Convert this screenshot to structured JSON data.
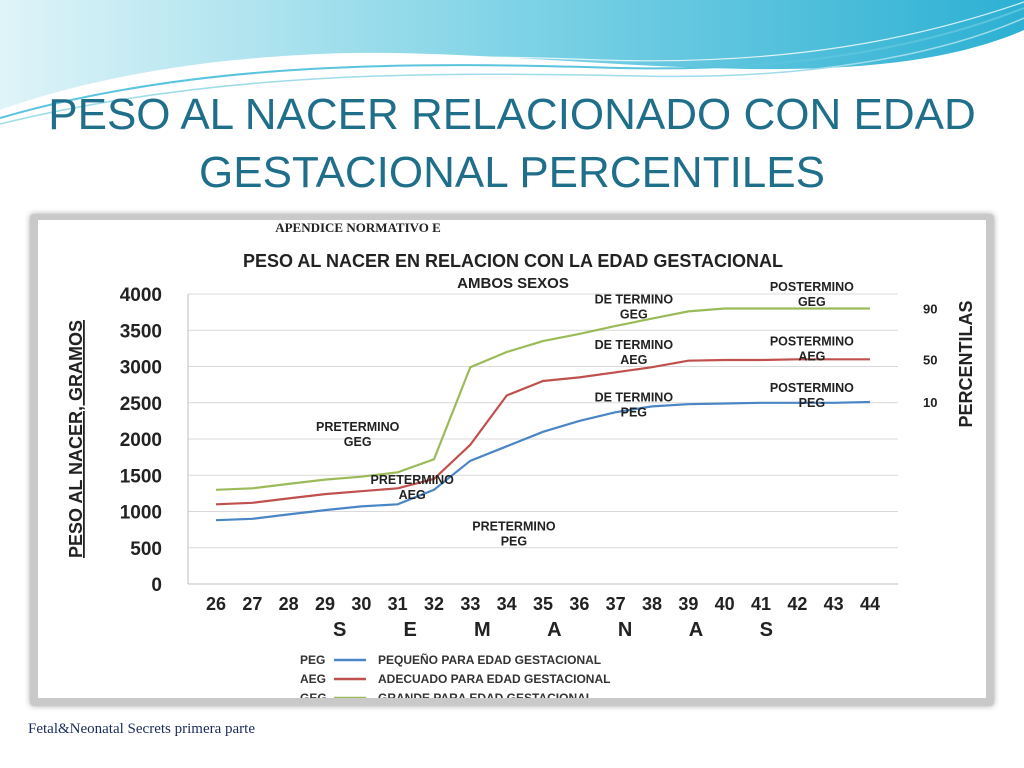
{
  "slide": {
    "title_line1": "PESO AL NACER RELACIONADO CON EDAD",
    "title_line2": "GESTACIONAL PERCENTILES",
    "footer": "Fetal&Neonatal Secrets primera parte"
  },
  "chart_data": {
    "type": "line",
    "header": "APENDICE NORMATIVO E",
    "title": "PESO AL NACER EN RELACION CON LA EDAD GESTACIONAL",
    "subtitle": "AMBOS SEXOS",
    "ylabel": "PESO AL NACER, GRAMOS",
    "xlabel": "S E M A N A S",
    "right_label": "PERCENTILAS",
    "ylim": [
      0,
      4000
    ],
    "yticks": [
      0,
      500,
      1000,
      1500,
      2000,
      2500,
      3000,
      3500,
      4000
    ],
    "x": [
      26,
      27,
      28,
      29,
      30,
      31,
      32,
      33,
      34,
      35,
      36,
      37,
      38,
      39,
      40,
      41,
      42,
      43,
      44
    ],
    "grid": true,
    "series": [
      {
        "name": "PEG",
        "color": "#4a86c5",
        "percentile": "10",
        "values": [
          880,
          900,
          960,
          1020,
          1070,
          1100,
          1300,
          1700,
          1900,
          2100,
          2250,
          2370,
          2450,
          2480,
          2490,
          2500,
          2500,
          2500,
          2510
        ]
      },
      {
        "name": "AEG",
        "color": "#c0504d",
        "percentile": "50",
        "values": [
          1100,
          1120,
          1180,
          1240,
          1280,
          1320,
          1450,
          1920,
          2600,
          2800,
          2850,
          2920,
          2990,
          3080,
          3090,
          3090,
          3100,
          3100,
          3100
        ]
      },
      {
        "name": "GEG",
        "color": "#9bbb59",
        "percentile": "90",
        "values": [
          1300,
          1320,
          1380,
          1440,
          1480,
          1540,
          1720,
          2990,
          3200,
          3350,
          3450,
          3560,
          3660,
          3760,
          3800,
          3800,
          3800,
          3800,
          3800
        ]
      }
    ],
    "legend": [
      {
        "abbr": "PEG",
        "text": "PEQUEÑO PARA EDAD GESTACIONAL",
        "color": "#4a86c5"
      },
      {
        "abbr": "AEG",
        "text": "ADECUADO PARA EDAD GESTACIONAL",
        "color": "#c0504d"
      },
      {
        "abbr": "GEG",
        "text": "GRANDE PARA EDAD GESTACIONAL",
        "color": "#9bbb59"
      }
    ],
    "annotations": [
      {
        "line1": "PRETERMINO",
        "line2": "GEG",
        "x": 29.9,
        "y": 2110
      },
      {
        "line1": "PRETERMINO",
        "line2": "AEG",
        "x": 31.4,
        "y": 1380
      },
      {
        "line1": "PRETERMINO",
        "line2": "PEG",
        "x": 34.2,
        "y": 740
      },
      {
        "line1": "DE TERMINO",
        "line2": "GEG",
        "x": 37.5,
        "y": 3870
      },
      {
        "line1": "DE TERMINO",
        "line2": "AEG",
        "x": 37.5,
        "y": 3240
      },
      {
        "line1": "DE TERMINO",
        "line2": "PEG",
        "x": 37.5,
        "y": 2520
      },
      {
        "line1": "POSTERMINO",
        "line2": "GEG",
        "x": 42.4,
        "y": 4040
      },
      {
        "line1": "POSTERMINO",
        "line2": "AEG",
        "x": 42.4,
        "y": 3290
      },
      {
        "line1": "POSTERMINO",
        "line2": "PEG",
        "x": 42.4,
        "y": 2650
      }
    ]
  }
}
